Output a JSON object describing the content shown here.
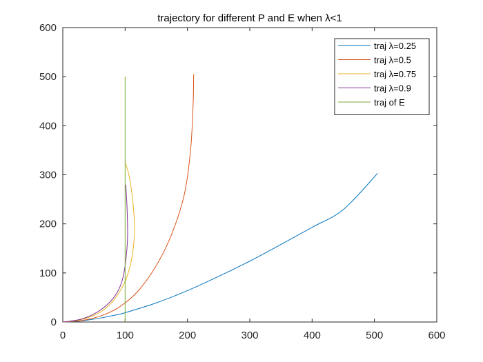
{
  "chart_data": {
    "type": "line",
    "title": "trajectory for different P and E when λ<1",
    "xlabel": "",
    "ylabel": "",
    "xlim": [
      0,
      600
    ],
    "ylim": [
      0,
      600
    ],
    "xticks": [
      "0",
      "100",
      "200",
      "300",
      "400",
      "500",
      "600"
    ],
    "yticks": [
      "0",
      "100",
      "200",
      "300",
      "400",
      "500",
      "600"
    ],
    "grid": false,
    "legend_position": "top-right",
    "series": [
      {
        "name": "traj λ=0.25",
        "color": "#0072BD",
        "x": [
          0,
          20,
          40,
          60,
          80,
          100,
          150,
          200,
          250,
          300,
          350,
          400,
          450,
          505
        ],
        "y": [
          0,
          1,
          4,
          8,
          13,
          19,
          39,
          64,
          93,
          124,
          158,
          193,
          229,
          303
        ]
      },
      {
        "name": "traj λ=0.5",
        "color": "#D95319",
        "x": [
          0,
          30,
          60,
          90,
          120,
          150,
          175,
          195,
          205,
          209,
          210
        ],
        "y": [
          0,
          3,
          12,
          30,
          62,
          115,
          180,
          260,
          350,
          440,
          505
        ]
      },
      {
        "name": "traj λ=0.75",
        "color": "#EDB120",
        "x": [
          0,
          30,
          60,
          80,
          95,
          105,
          112,
          115,
          112,
          106,
          100
        ],
        "y": [
          0,
          5,
          20,
          42,
          70,
          100,
          140,
          190,
          250,
          300,
          325
        ]
      },
      {
        "name": "traj λ=0.9",
        "color": "#7E2F8E",
        "x": [
          0,
          30,
          55,
          75,
          88,
          96,
          101,
          104,
          103,
          101
        ],
        "y": [
          0,
          6,
          20,
          40,
          62,
          88,
          125,
          175,
          235,
          280
        ]
      },
      {
        "name": "traj of E",
        "color": "#77AC30",
        "x": [
          100,
          100
        ],
        "y": [
          0,
          500
        ]
      }
    ]
  }
}
